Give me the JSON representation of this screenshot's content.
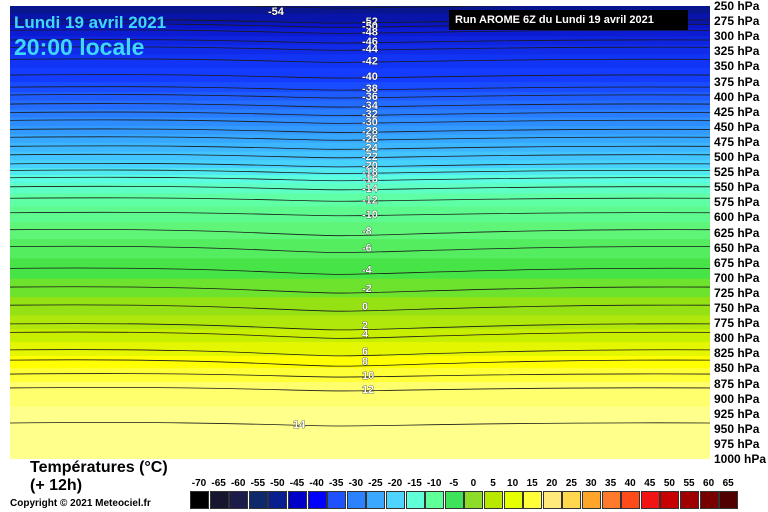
{
  "header": {
    "date": "Lundi 19 avril 2021",
    "time": "20:00 locale",
    "run": "Run AROME 6Z du Lundi 19 avril 2021"
  },
  "footer": {
    "title": "Températures (°C)",
    "subtitle": "(+ 12h)",
    "copyright": "Copyright © 2021 Meteociel.fr"
  },
  "chart_data": {
    "type": "heatmap",
    "y_axis": {
      "unit": "hPa",
      "ticks": [
        250,
        275,
        300,
        325,
        350,
        375,
        400,
        425,
        450,
        475,
        500,
        525,
        550,
        575,
        600,
        625,
        650,
        675,
        700,
        725,
        750,
        775,
        800,
        825,
        850,
        875,
        900,
        925,
        950,
        975,
        1000
      ],
      "tick_labels": [
        "250 hPa",
        "275 hPa",
        "300 hPa",
        "325 hPa",
        "350 hPa",
        "375 hPa",
        "400 hPa",
        "425 hPa",
        "450 hPa",
        "475 hPa",
        "500 hPa",
        "525 hPa",
        "550 hPa",
        "575 hPa",
        "600 hPa",
        "625 hPa",
        "650 hPa",
        "675 hPa",
        "700 hPa",
        "725 hPa",
        "750 hPa",
        "775 hPa",
        "800 hPa",
        "825 hPa",
        "850 hPa",
        "875 hPa",
        "900 hPa",
        "925 hPa",
        "950 hPa",
        "975 hPa",
        "1000 hPa"
      ]
    },
    "isotherms": [
      {
        "label": "-54",
        "temp": -54,
        "p": 250
      },
      {
        "label": "-52",
        "temp": -52,
        "p": 275
      },
      {
        "label": "-50",
        "temp": -50,
        "p": 282
      },
      {
        "label": "-48",
        "temp": -48,
        "p": 292
      },
      {
        "label": "-46",
        "temp": -46,
        "p": 308
      },
      {
        "label": "-44",
        "temp": -44,
        "p": 320
      },
      {
        "label": "-42",
        "temp": -42,
        "p": 340
      },
      {
        "label": "-40",
        "temp": -40,
        "p": 366
      },
      {
        "label": "-38",
        "temp": -38,
        "p": 386
      },
      {
        "label": "-36",
        "temp": -36,
        "p": 399
      },
      {
        "label": "-34",
        "temp": -34,
        "p": 414
      },
      {
        "label": "-32",
        "temp": -32,
        "p": 428
      },
      {
        "label": "-30",
        "temp": -30,
        "p": 441
      },
      {
        "label": "-28",
        "temp": -28,
        "p": 456
      },
      {
        "label": "-26",
        "temp": -26,
        "p": 469
      },
      {
        "label": "-24",
        "temp": -24,
        "p": 484
      },
      {
        "label": "-22",
        "temp": -22,
        "p": 498
      },
      {
        "label": "-20",
        "temp": -20,
        "p": 513
      },
      {
        "label": "-18",
        "temp": -18,
        "p": 524
      },
      {
        "label": "-16",
        "temp": -16,
        "p": 536
      },
      {
        "label": "-14",
        "temp": -14,
        "p": 551
      },
      {
        "label": "-12",
        "temp": -12,
        "p": 570
      },
      {
        "label": "-10",
        "temp": -10,
        "p": 594
      },
      {
        "label": "-8",
        "temp": -8,
        "p": 622
      },
      {
        "label": "-6",
        "temp": -6,
        "p": 650
      },
      {
        "label": "-4",
        "temp": -4,
        "p": 686
      },
      {
        "label": "-2",
        "temp": -2,
        "p": 717
      },
      {
        "label": "0",
        "temp": 0,
        "p": 747
      },
      {
        "label": "2",
        "temp": 2,
        "p": 778
      },
      {
        "label": "4",
        "temp": 4,
        "p": 792
      },
      {
        "label": "6",
        "temp": 6,
        "p": 821
      },
      {
        "label": "8",
        "temp": 8,
        "p": 838
      },
      {
        "label": "10",
        "temp": 10,
        "p": 861
      },
      {
        "label": "12",
        "temp": 12,
        "p": 884
      },
      {
        "label": "14",
        "temp": 14,
        "p": 942
      }
    ],
    "colorbar": {
      "labels": [
        "-70",
        "-65",
        "-60",
        "-55",
        "-50",
        "-45",
        "-40",
        "-35",
        "-30",
        "-25",
        "-20",
        "-15",
        "-10",
        "-5",
        "0",
        "5",
        "10",
        "15",
        "20",
        "25",
        "30",
        "35",
        "40",
        "45",
        "50",
        "55",
        "60",
        "65"
      ],
      "colors": [
        "#000000",
        "#16162e",
        "#1c1c4a",
        "#0f2a6a",
        "#0a1f8f",
        "#0000c8",
        "#0000ff",
        "#1f52ff",
        "#2b82ff",
        "#3aa8ff",
        "#4fd4ff",
        "#5fffd8",
        "#5fff9a",
        "#3ee35a",
        "#8cdc28",
        "#b8e800",
        "#e6ff00",
        "#ffff3a",
        "#ffe97a",
        "#ffd84d",
        "#ffa52a",
        "#ff7a2a",
        "#ff4a1a",
        "#f01414",
        "#c80000",
        "#a00000",
        "#780000",
        "#500000"
      ]
    }
  }
}
